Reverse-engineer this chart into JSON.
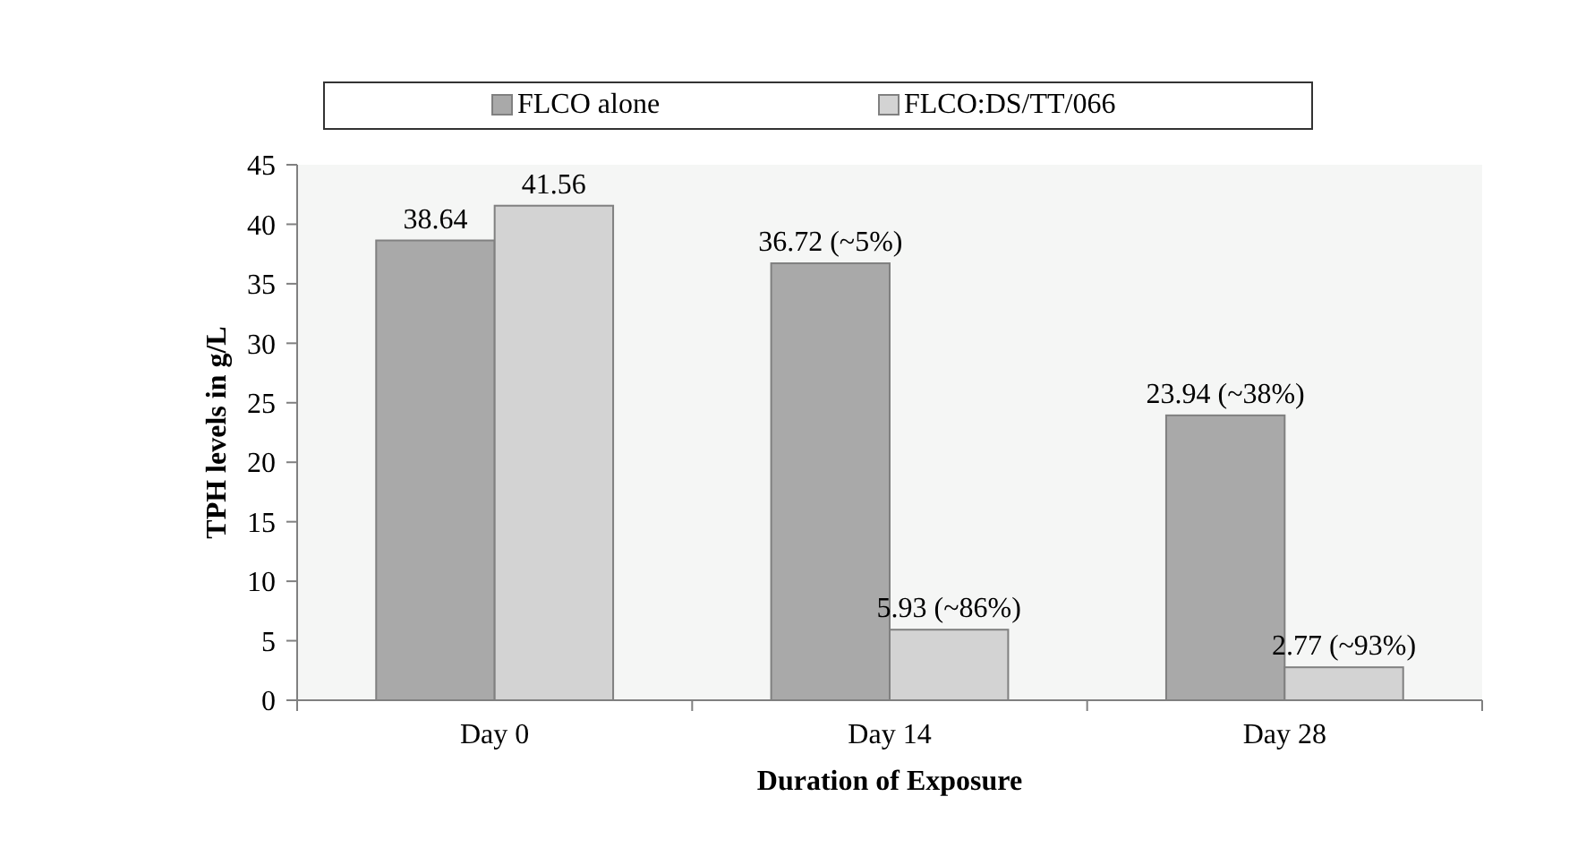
{
  "chart_data": {
    "type": "bar",
    "xlabel": "Duration of Exposure",
    "ylabel": "TPH levels in g/L",
    "categories": [
      "Day 0",
      "Day 14",
      "Day 28"
    ],
    "series": [
      {
        "name": "FLCO alone",
        "color": "#a9a9a9",
        "values": [
          38.64,
          36.72,
          23.94
        ],
        "value_labels": [
          "38.64",
          "36.72 (~5%)",
          "23.94 (~38%)"
        ]
      },
      {
        "name": "FLCO:DS/TT/066",
        "color": "#d3d3d3",
        "values": [
          41.56,
          5.93,
          2.77
        ],
        "value_labels": [
          "41.56",
          "5.93 (~86%)",
          "2.77 (~93%)"
        ]
      }
    ],
    "ylim": [
      0,
      45
    ],
    "yticks": [
      0,
      5,
      10,
      15,
      20,
      25,
      30,
      35,
      40,
      45
    ],
    "grid": false,
    "legend": "top"
  }
}
